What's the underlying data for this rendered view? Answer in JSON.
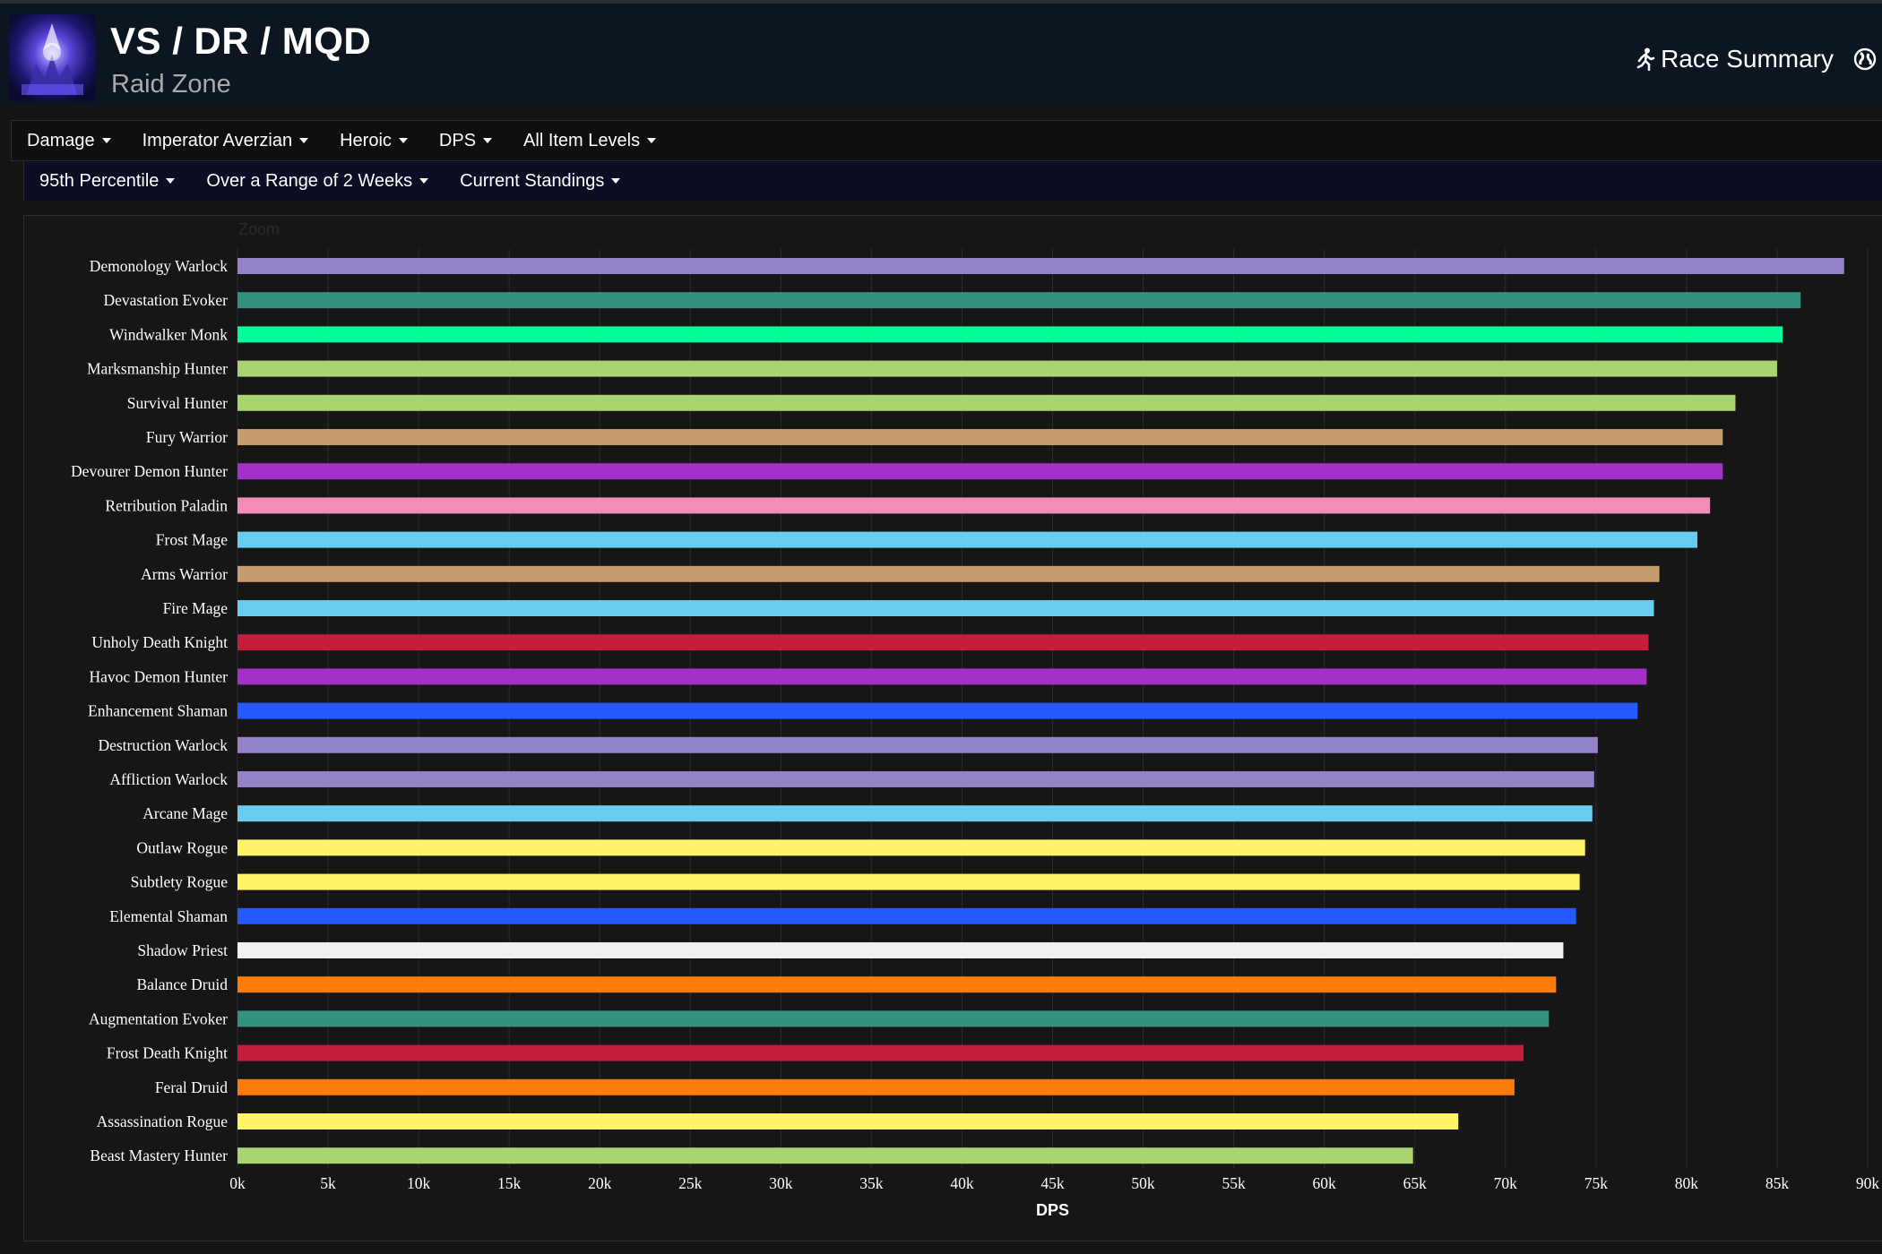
{
  "header": {
    "title": "VS / DR / MQD",
    "subtitle": "Raid Zone",
    "race_summary_label": "Race Summary",
    "race_icon": "running-man-icon",
    "globe_icon": "globe-icon"
  },
  "filters": {
    "row1": [
      "Damage",
      "Imperator Averzian",
      "Heroic",
      "DPS",
      "All Item Levels"
    ],
    "row2": [
      "95th Percentile",
      "Over a Range of 2 Weeks",
      "Current Standings"
    ]
  },
  "zoom_label": "Zoom",
  "colors": {
    "header_bg": "#0c1620",
    "row2_bg": "#0b0e24",
    "chart_bg": "#161616"
  },
  "chart_data": {
    "type": "bar",
    "orientation": "horizontal",
    "xlabel": "DPS",
    "ylabel": "",
    "xlim": [
      0,
      90000
    ],
    "x_ticks": [
      0,
      5000,
      10000,
      15000,
      20000,
      25000,
      30000,
      35000,
      40000,
      45000,
      50000,
      55000,
      60000,
      65000,
      70000,
      75000,
      80000,
      85000,
      90000
    ],
    "x_tick_labels": [
      "0k",
      "5k",
      "10k",
      "15k",
      "20k",
      "25k",
      "30k",
      "35k",
      "40k",
      "45k",
      "50k",
      "55k",
      "60k",
      "65k",
      "70k",
      "75k",
      "80k",
      "85k",
      "90k"
    ],
    "grid": true,
    "legend": "none",
    "categories": [
      "Demonology Warlock",
      "Devastation Evoker",
      "Windwalker Monk",
      "Marksmanship Hunter",
      "Survival Hunter",
      "Fury Warrior",
      "Devourer Demon Hunter",
      "Retribution Paladin",
      "Frost Mage",
      "Arms Warrior",
      "Fire Mage",
      "Unholy Death Knight",
      "Havoc Demon Hunter",
      "Enhancement Shaman",
      "Destruction Warlock",
      "Affliction Warlock",
      "Arcane Mage",
      "Outlaw Rogue",
      "Subtlety Rogue",
      "Elemental Shaman",
      "Shadow Priest",
      "Balance Druid",
      "Augmentation Evoker",
      "Frost Death Knight",
      "Feral Druid",
      "Assassination Rogue",
      "Beast Mastery Hunter"
    ],
    "values": [
      88700,
      86300,
      85300,
      85000,
      82700,
      82000,
      82000,
      81300,
      80600,
      78500,
      78200,
      77900,
      77800,
      77300,
      75100,
      74900,
      74800,
      74400,
      74100,
      73900,
      73200,
      72800,
      72400,
      71000,
      70500,
      67400,
      64900
    ],
    "bar_colors": [
      "#9482c9",
      "#33937f",
      "#00ff98",
      "#aad372",
      "#aad372",
      "#c69b6d",
      "#a330c9",
      "#f48cba",
      "#68ccef",
      "#c69b6d",
      "#68ccef",
      "#c41e3a",
      "#a330c9",
      "#2459ff",
      "#9482c9",
      "#9482c9",
      "#68ccef",
      "#fff468",
      "#fff468",
      "#2459ff",
      "#f0f0f0",
      "#ff7c0a",
      "#33937f",
      "#c41e3a",
      "#ff7c0a",
      "#fff468",
      "#aad372"
    ]
  }
}
